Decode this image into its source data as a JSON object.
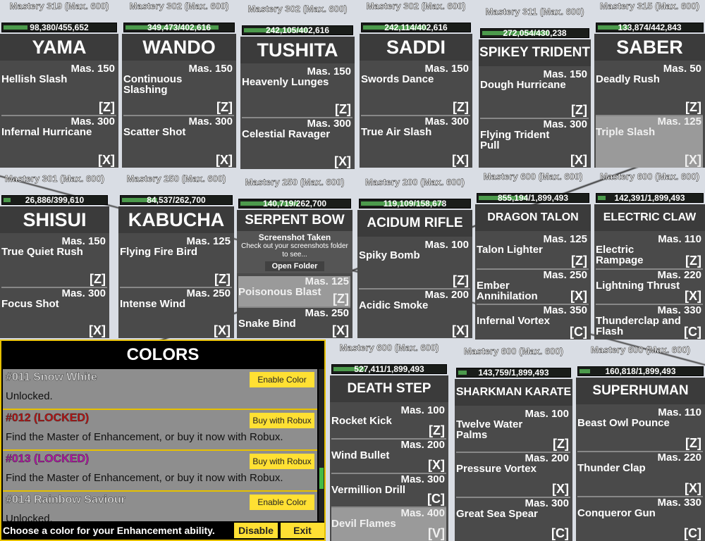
{
  "cards": [
    {
      "title": "YAMA",
      "mastery": "Mastery 319 (Max. 600)",
      "progress": "98,380/455,652",
      "moves": [
        {
          "name": "Hellish Slash",
          "mas": "Mas. 150",
          "key": "[Z]"
        },
        {
          "name": "Infernal Hurricane",
          "mas": "Mas. 300",
          "key": "[X]"
        }
      ]
    },
    {
      "title": "WANDO",
      "mastery": "Mastery 302 (Max. 600)",
      "progress": "349,473/402,616",
      "moves": [
        {
          "name": "Continuous Slashing",
          "mas": "Mas. 150",
          "key": "[Z]"
        },
        {
          "name": "Scatter Shot",
          "mas": "Mas. 300",
          "key": "[X]"
        }
      ]
    },
    {
      "title": "TUSHITA",
      "mastery": "Mastery 302 (Max. 600)",
      "progress": "242,105/402,616",
      "moves": [
        {
          "name": "Heavenly Lunges",
          "mas": "Mas. 150",
          "key": "[Z]"
        },
        {
          "name": "Celestial Ravager",
          "mas": "Mas. 300",
          "key": "[X]"
        }
      ]
    },
    {
      "title": "SADDI",
      "mastery": "Mastery 302 (Max. 600)",
      "progress": "242,114/402,616",
      "moves": [
        {
          "name": "Swords Dance",
          "mas": "Mas. 150",
          "key": "[Z]"
        },
        {
          "name": "True Air Slash",
          "mas": "Mas. 300",
          "key": "[X]"
        }
      ]
    },
    {
      "title": "SPIKEY TRIDENT",
      "mastery": "Mastery 311 (Max. 600)",
      "progress": "272,054/430,238",
      "moves": [
        {
          "name": "Dough Hurricane",
          "mas": "Mas. 150",
          "key": "[Z]"
        },
        {
          "name": "Flying Trident Pull",
          "mas": "Mas. 300",
          "key": "[X]"
        }
      ]
    },
    {
      "title": "SABER",
      "mastery": "Mastery 315 (Max. 600)",
      "progress": "133,874/442,843",
      "moves": [
        {
          "name": "Deadly Rush",
          "mas": "Mas. 50",
          "key": "[Z]"
        },
        {
          "name": "Triple Slash",
          "mas": "Mas. 125",
          "key": "[X]",
          "locked": true
        }
      ]
    },
    {
      "title": "SHISUI",
      "mastery": "Mastery 301 (Max. 600)",
      "progress": "26,886/399,610",
      "moves": [
        {
          "name": "True Quiet Rush",
          "mas": "Mas. 150",
          "key": "[Z]"
        },
        {
          "name": "Focus Shot",
          "mas": "Mas. 300",
          "key": "[X]"
        }
      ]
    },
    {
      "title": "KABUCHA",
      "mastery": "Mastery 250 (Max. 600)",
      "progress": "84,537/262,700",
      "moves": [
        {
          "name": "Flying Fire Bird",
          "mas": "Mas. 125",
          "key": "[Z]"
        },
        {
          "name": "Intense Wind",
          "mas": "Mas. 250",
          "key": "[X]"
        }
      ]
    },
    {
      "title": "SERPENT BOW",
      "mastery": "Mastery 250 (Max. 600)",
      "progress": "140,719/262,700",
      "moves": [
        {
          "name": "Poisonous Blast",
          "mas": "Mas. 125",
          "key": "[Z]",
          "locked": true
        },
        {
          "name": "Snake Bind",
          "mas": "Mas. 250",
          "key": "[X]"
        }
      ]
    },
    {
      "title": "ACIDUM RIFLE",
      "mastery": "Mastery 200 (Max. 600)",
      "progress": "119,109/158,678",
      "moves": [
        {
          "name": "Spiky Bomb",
          "mas": "Mas. 100",
          "key": "[Z]"
        },
        {
          "name": "Acidic Smoke",
          "mas": "Mas. 200",
          "key": "[X]"
        }
      ]
    },
    {
      "title": "DRAGON TALON",
      "mastery": "Mastery 600 (Max. 600)",
      "progress": "855,194/1,899,493",
      "moves": [
        {
          "name": "Talon Lighter",
          "mas": "Mas. 125",
          "key": "[Z]"
        },
        {
          "name": "Ember Annihilation",
          "mas": "Mas. 250",
          "key": "[X]"
        },
        {
          "name": "Infernal Vortex",
          "mas": "Mas. 350",
          "key": "[C]"
        }
      ]
    },
    {
      "title": "ELECTRIC CLAW",
      "mastery": "Mastery 600 (Max. 600)",
      "progress": "142,391/1,899,493",
      "moves": [
        {
          "name": "Electric Rampage",
          "mas": "Mas. 110",
          "key": "[Z]"
        },
        {
          "name": "Lightning Thrust",
          "mas": "Mas. 220",
          "key": "[X]"
        },
        {
          "name": "Thunderclap and Flash",
          "mas": "Mas. 330",
          "key": "[C]"
        }
      ]
    },
    {
      "title": "DEATH STEP",
      "mastery": "Mastery 600 (Max. 600)",
      "progress": "527,411/1,899,493",
      "moves": [
        {
          "name": "Rocket Kick",
          "mas": "Mas. 100",
          "key": "[Z]"
        },
        {
          "name": "Wind Bullet",
          "mas": "Mas. 200",
          "key": "[X]"
        },
        {
          "name": "Vermillion Drill",
          "mas": "Mas. 300",
          "key": "[C]"
        },
        {
          "name": "Devil Flames",
          "mas": "Mas. 400",
          "key": "[V]",
          "locked": true
        }
      ]
    },
    {
      "title": "SHARKMAN KARATE",
      "mastery": "Mastery 600 (Max. 600)",
      "progress": "143,759/1,899,493",
      "moves": [
        {
          "name": "Twelve Water Palms",
          "mas": "Mas. 100",
          "key": "[Z]"
        },
        {
          "name": "Pressure Vortex",
          "mas": "Mas. 200",
          "key": "[X]"
        },
        {
          "name": "Great Sea Spear",
          "mas": "Mas. 300",
          "key": "[C]"
        }
      ]
    },
    {
      "title": "SUPERHUMAN",
      "mastery": "Mastery 600 (Max. 600)",
      "progress": "160,818/1,899,493",
      "moves": [
        {
          "name": "Beast Owl Pounce",
          "mas": "Mas. 110",
          "key": "[Z]"
        },
        {
          "name": "Thunder Clap",
          "mas": "Mas. 220",
          "key": "[X]"
        },
        {
          "name": "Conqueror Gun",
          "mas": "Mas. 330",
          "key": "[C]"
        }
      ]
    }
  ],
  "toast": {
    "title": "Screenshot Taken",
    "message": "Check out your screenshots folder to see...",
    "button": "Open Folder"
  },
  "colors_panel": {
    "title": "COLORS",
    "items": [
      {
        "name": "#011 Snow White",
        "desc": "Unlocked.",
        "button": "Enable Color",
        "color": "#dddddd"
      },
      {
        "name": "#012 (LOCKED)",
        "desc": "Find the Master of Enhancement, or buy it now with Robux.",
        "button": "Buy with Robux",
        "color": "#c01010"
      },
      {
        "name": "#013 (LOCKED)",
        "desc": "Find the Master of Enhancement, or buy it now with Robux.",
        "button": "Buy with Robux",
        "color": "#c010b0"
      },
      {
        "name": "#014 Rainbow Saviour",
        "desc": "Unlocked.",
        "button": "Enable Color",
        "color": "#dddddd"
      }
    ],
    "footer": "Choose a color for your Enhancement ability.",
    "disable": "Disable",
    "exit": "Exit",
    "accent": "#ffe033"
  }
}
